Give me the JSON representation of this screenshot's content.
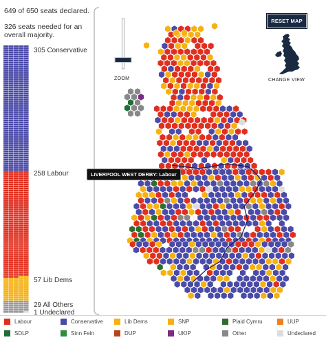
{
  "summary": {
    "declared": "649 of 650 seats declared.",
    "needed": "326 seats needed for an overall majority."
  },
  "stack": {
    "segments": [
      {
        "party": "Conservative",
        "seats": 305,
        "color": "#4a4aa8",
        "label": "305 Conservative"
      },
      {
        "party": "Labour",
        "seats": 258,
        "color": "#e02f1f",
        "label": "258 Labour"
      },
      {
        "party": "Lib Dems",
        "seats": 57,
        "color": "#f6b113",
        "label": "57 Lib Dems"
      },
      {
        "party": "All Others",
        "seats": 29,
        "color": "#999999",
        "label": "29 All Others"
      },
      {
        "party": "Undeclared",
        "seats": 1,
        "color": "#dddddd",
        "label": "1 Undeclared"
      }
    ]
  },
  "controls": {
    "zoom_label": "ZOOM",
    "zoom_level": 0.2,
    "reset_label": "RESET MAP",
    "change_view_label": "CHANGE VIEW",
    "uk_icon": "uk-silhouette-icon"
  },
  "tooltip": "LIVERPOOL WEST DERBY: Labour",
  "legend": [
    {
      "label": "Labour",
      "color": "#e02f1f"
    },
    {
      "label": "Conservative",
      "color": "#4a4aa8"
    },
    {
      "label": "Lib Dems",
      "color": "#f6b113"
    },
    {
      "label": "SNP",
      "color": "#f6b113"
    },
    {
      "label": "Plaid Cymru",
      "color": "#2d6e2d"
    },
    {
      "label": "UUP",
      "color": "#f07f1e"
    },
    {
      "label": "SDLP",
      "color": "#1f6e35"
    },
    {
      "label": "Sinn Fein",
      "color": "#2e8c3b"
    },
    {
      "label": "DUP",
      "color": "#b7431a"
    },
    {
      "label": "UKIP",
      "color": "#7b2a85"
    },
    {
      "label": "Other",
      "color": "#888888"
    },
    {
      "label": "Undeclared",
      "color": "#dddddd"
    }
  ]
}
